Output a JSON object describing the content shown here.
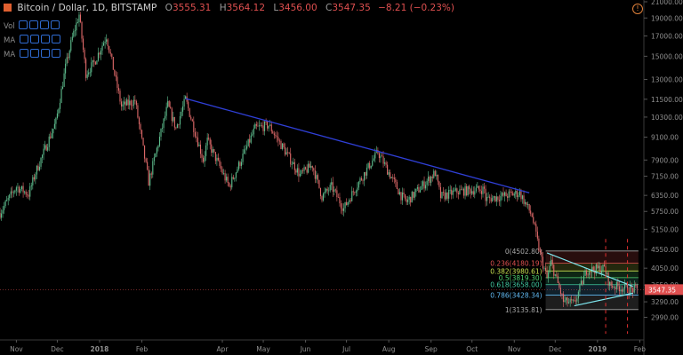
{
  "header": {
    "symbol": "Bitcoin / Dollar, 1D, BITSTAMP",
    "open_key": "O",
    "open": "3555.31",
    "high_key": "H",
    "high": "3564.12",
    "low_key": "L",
    "low": "3456.00",
    "close_key": "C",
    "close": "3547.35",
    "change": "−8.21 (−0.23%)"
  },
  "indicators": [
    "Vol",
    "MA",
    "MA"
  ],
  "colors": {
    "background": "#000000",
    "up": "#5fbf8f",
    "down": "#e06a6a",
    "trendline": "#2f3fd6",
    "triangle": "#7fe8f0",
    "price_tag": "#e05050",
    "axis_text": "#8f8f8f"
  },
  "chart_data": {
    "type": "candlestick",
    "instrument": "Bitcoin / Dollar",
    "interval": "1D",
    "exchange": "BITSTAMP",
    "y_scale": "log",
    "ylim": [
      2600,
      21000
    ],
    "y_ticks": [
      "21000.00",
      "19000.00",
      "17000.00",
      "15000.00",
      "13000.00",
      "11500.00",
      "10300.00",
      "9100.00",
      "7900.00",
      "7150.00",
      "6350.00",
      "5750.00",
      "5150.00",
      "4550.00",
      "4050.00",
      "3650.00",
      "3290.00",
      "2990.00"
    ],
    "x_ticks": [
      "Nov",
      "Dec",
      "2018",
      "Feb",
      "Apr",
      "May",
      "Jun",
      "Jul",
      "Aug",
      "Sep",
      "Oct",
      "Nov",
      "Dec",
      "2019",
      "Feb"
    ],
    "current_price": "3547.35",
    "price_path": [
      [
        "2017-10-20",
        5700
      ],
      [
        "2017-11-01",
        6700
      ],
      [
        "2017-11-10",
        6400
      ],
      [
        "2017-11-15",
        7300
      ],
      [
        "2017-11-30",
        10000
      ],
      [
        "2017-12-07",
        14000
      ],
      [
        "2017-12-12",
        16800
      ],
      [
        "2017-12-17",
        19400
      ],
      [
        "2017-12-22",
        13500
      ],
      [
        "2017-12-28",
        14400
      ],
      [
        "2018-01-06",
        17000
      ],
      [
        "2018-01-17",
        11000
      ],
      [
        "2018-01-27",
        11400
      ],
      [
        "2018-02-06",
        6900
      ],
      [
        "2018-02-20",
        11100
      ],
      [
        "2018-02-26",
        9600
      ],
      [
        "2018-03-05",
        11500
      ],
      [
        "2018-03-18",
        7900
      ],
      [
        "2018-03-21",
        8900
      ],
      [
        "2018-04-06",
        6700
      ],
      [
        "2018-04-25",
        9600
      ],
      [
        "2018-05-05",
        9800
      ],
      [
        "2018-05-28",
        7200
      ],
      [
        "2018-06-06",
        7650
      ],
      [
        "2018-06-13",
        6300
      ],
      [
        "2018-06-20",
        6700
      ],
      [
        "2018-06-29",
        5850
      ],
      [
        "2018-07-08",
        6700
      ],
      [
        "2018-07-24",
        8300
      ],
      [
        "2018-08-10",
        6350
      ],
      [
        "2018-08-14",
        6100
      ],
      [
        "2018-09-04",
        7300
      ],
      [
        "2018-09-08",
        6300
      ],
      [
        "2018-09-20",
        6500
      ],
      [
        "2018-10-10",
        6600
      ],
      [
        "2018-10-11",
        6200
      ],
      [
        "2018-11-05",
        6450
      ],
      [
        "2018-11-14",
        5600
      ],
      [
        "2018-11-20",
        4400
      ],
      [
        "2018-11-25",
        3800
      ],
      [
        "2018-11-28",
        4200
      ],
      [
        "2018-12-07",
        3300
      ],
      [
        "2018-12-15",
        3250
      ],
      [
        "2018-12-24",
        4000
      ],
      [
        "2019-01-06",
        4050
      ],
      [
        "2019-01-10",
        3650
      ],
      [
        "2019-01-25",
        3550
      ],
      [
        "2019-01-30",
        3547
      ]
    ],
    "annotations": {
      "descending_trendline": {
        "from": [
          "2018-03-05",
          11550
        ],
        "to": [
          "2018-11-12",
          6450
        ]
      },
      "fibonacci_retracement": {
        "from_date": "2018-11-24",
        "to_date": "2019-01-31",
        "levels": [
          {
            "label": "0(4502.80)",
            "value": 4502.8,
            "color": "#a8a8a8"
          },
          {
            "label": "0.236(4180.19)",
            "value": 4180.19,
            "color": "#e05050"
          },
          {
            "label": "0.382(3980.61)",
            "value": 3980.61,
            "color": "#c8e050"
          },
          {
            "label": "0.5(3819.30)",
            "value": 3819.3,
            "color": "#50d070"
          },
          {
            "label": "0.618(3658.00)",
            "value": 3658.0,
            "color": "#40c8a0"
          },
          {
            "label": "0.786(3428.34)",
            "value": 3428.34,
            "color": "#60b8f0"
          },
          {
            "label": "1(3135.81)",
            "value": 3135.81,
            "color": "#a8a8a8"
          }
        ]
      },
      "triangle": {
        "upper": {
          "from": [
            "2018-11-25",
            4450
          ],
          "to": [
            "2019-01-27",
            3620
          ]
        },
        "lower": {
          "from": [
            "2018-12-15",
            3210
          ],
          "to": [
            "2019-01-27",
            3470
          ]
        }
      },
      "vertical_markers": [
        "2019-01-07",
        "2019-01-23"
      ]
    }
  }
}
